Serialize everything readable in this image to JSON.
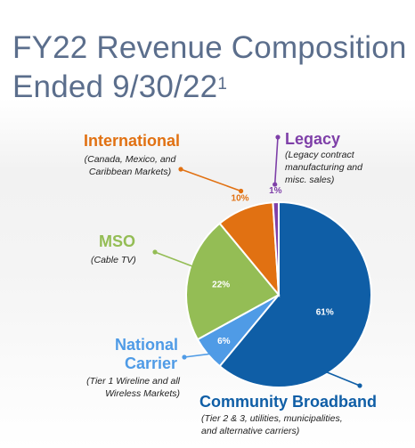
{
  "title": "FY22 Revenue Composition",
  "title_line2": "Ended 9/30/22",
  "title_footnote": "1",
  "colors": {
    "community": "#0f5ea6",
    "national": "#4f9be6",
    "mso": "#94bd55",
    "international": "#e17112",
    "legacy": "#7e3fa8",
    "heading": "#5b6e8c"
  },
  "chart_data": {
    "type": "pie",
    "title": "FY22 Revenue Composition Ended 9/30/22",
    "slices": [
      {
        "name": "Community Broadband",
        "value": 61,
        "label": "61%",
        "note": "(Tier 2 & 3, utilities, municipalities, and alternative carriers)"
      },
      {
        "name": "National Carrier",
        "value": 6,
        "label": "6%",
        "note": "(Tier 1 Wireline and all Wireless Markets)"
      },
      {
        "name": "MSO",
        "value": 22,
        "label": "22%",
        "note": "(Cable TV)"
      },
      {
        "name": "International",
        "value": 10,
        "label": "10%",
        "note": "(Canada, Mexico, and Caribbean Markets)"
      },
      {
        "name": "Legacy",
        "value": 1,
        "label": "1%",
        "note": "(Legacy contract manufacturing and misc. sales)"
      }
    ]
  },
  "labels": {
    "international": {
      "heading": "International",
      "line1": "(Canada, Mexico, and",
      "line2": "Caribbean Markets)"
    },
    "legacy": {
      "heading": "Legacy",
      "line1": "(Legacy contract",
      "line2": "manufacturing and",
      "line3": "misc. sales)"
    },
    "mso": {
      "heading": "MSO",
      "line1": "(Cable TV)"
    },
    "national": {
      "heading1": "National",
      "heading2": "Carrier",
      "line1": "(Tier 1 Wireline and all",
      "line2": "Wireless Markets)"
    },
    "community": {
      "heading": "Community Broadband",
      "line1": "(Tier 2 & 3, utilities, municipalities,",
      "line2": "and alternative carriers)"
    }
  }
}
